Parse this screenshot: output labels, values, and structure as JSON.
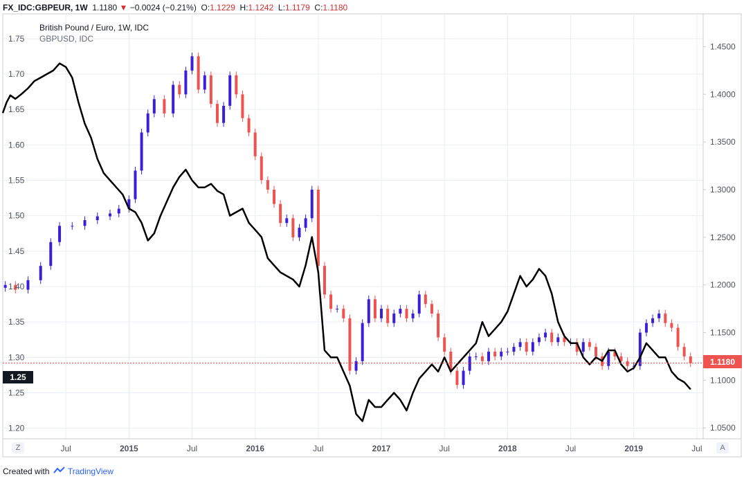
{
  "header": {
    "symbol": "FX_IDC:GBPEUR, 1W",
    "last": "1.1180",
    "change": "−0.0024 (−0.21%)",
    "o_label": "O:",
    "o_value": "1.1229",
    "h_label": "H:",
    "h_value": "1.1242",
    "l_label": "L:",
    "l_value": "1.1179",
    "c_label": "C:",
    "c_value": "1.1180"
  },
  "legend": {
    "main": "British Pound / Euro, 1W, IDC",
    "compare": "GBPUSD, IDC"
  },
  "footer": {
    "created_with": "Created with",
    "brand": "TradingView"
  },
  "buttons": {
    "left": "Z",
    "right": "A"
  },
  "price_label": "1.1180",
  "cursor_label": "1.25",
  "colors": {
    "up": "#3b1fd6",
    "down": "#ef5350",
    "compare": "#000000",
    "grid": "#e9edf5",
    "price_line": "#ef5350",
    "price_label_bg": "#ef5350"
  },
  "chart_data": {
    "type": "line",
    "x_type": "time",
    "x_tick_labels": [
      "Jul",
      "2015",
      "Jul",
      "2016",
      "Jul",
      "2017",
      "Jul",
      "2018",
      "Jul",
      "2019",
      "Jul"
    ],
    "x_tick_dates": [
      2014.5,
      2015.0,
      2015.5,
      2016.0,
      2016.5,
      2017.0,
      2017.5,
      2018.0,
      2018.5,
      2019.0,
      2019.5
    ],
    "xlim": [
      2014.0,
      2019.55
    ],
    "left_axis": {
      "ticks": [
        1.2,
        1.25,
        1.3,
        1.35,
        1.4,
        1.45,
        1.5,
        1.55,
        1.6,
        1.65,
        1.7,
        1.75
      ],
      "ylim": [
        1.185,
        1.785
      ],
      "label": "GBPUSD"
    },
    "right_axis": {
      "ticks": [
        1.05,
        1.1,
        1.15,
        1.2,
        1.25,
        1.3,
        1.35,
        1.4,
        1.45
      ],
      "ylim": [
        1.0385,
        1.4845
      ],
      "label": "GBPEUR"
    },
    "grid": true,
    "series": [
      {
        "name": "British Pound / Euro, 1W, IDC",
        "style": "candlestick",
        "axis": "right",
        "x": [
          2014.02,
          2014.1,
          2014.2,
          2014.3,
          2014.38,
          2014.45,
          2014.55,
          2014.65,
          2014.75,
          2014.85,
          2014.92,
          2015.0,
          2015.05,
          2015.1,
          2015.15,
          2015.2,
          2015.28,
          2015.35,
          2015.4,
          2015.45,
          2015.5,
          2015.55,
          2015.6,
          2015.65,
          2015.7,
          2015.75,
          2015.8,
          2015.85,
          2015.9,
          2015.95,
          2016.0,
          2016.05,
          2016.1,
          2016.15,
          2016.2,
          2016.25,
          2016.3,
          2016.35,
          2016.4,
          2016.45,
          2016.5,
          2016.55,
          2016.6,
          2016.65,
          2016.7,
          2016.75,
          2016.8,
          2016.85,
          2016.9,
          2016.95,
          2017.0,
          2017.05,
          2017.1,
          2017.15,
          2017.2,
          2017.25,
          2017.3,
          2017.35,
          2017.4,
          2017.45,
          2017.5,
          2017.55,
          2017.6,
          2017.65,
          2017.7,
          2017.75,
          2017.8,
          2017.85,
          2017.9,
          2017.95,
          2018.0,
          2018.05,
          2018.1,
          2018.15,
          2018.2,
          2018.25,
          2018.3,
          2018.35,
          2018.4,
          2018.45,
          2018.5,
          2018.55,
          2018.6,
          2018.65,
          2018.7,
          2018.75,
          2018.8,
          2018.85,
          2018.9,
          2018.95,
          2019.0,
          2019.05,
          2019.1,
          2019.15,
          2019.2,
          2019.25,
          2019.3,
          2019.35,
          2019.4,
          2019.45
        ],
        "close": [
          1.2,
          1.195,
          1.205,
          1.22,
          1.245,
          1.262,
          1.262,
          1.268,
          1.272,
          1.275,
          1.28,
          1.29,
          1.32,
          1.36,
          1.38,
          1.395,
          1.38,
          1.41,
          1.4,
          1.425,
          1.44,
          1.405,
          1.42,
          1.39,
          1.37,
          1.388,
          1.42,
          1.4,
          1.375,
          1.36,
          1.335,
          1.31,
          1.3,
          1.285,
          1.265,
          1.27,
          1.25,
          1.26,
          1.27,
          1.3,
          1.22,
          1.19,
          1.175,
          1.175,
          1.165,
          1.11,
          1.12,
          1.16,
          1.185,
          1.165,
          1.175,
          1.16,
          1.17,
          1.175,
          1.165,
          1.17,
          1.19,
          1.18,
          1.17,
          1.145,
          1.13,
          1.11,
          1.095,
          1.11,
          1.125,
          1.125,
          1.12,
          1.13,
          1.125,
          1.13,
          1.13,
          1.135,
          1.14,
          1.13,
          1.14,
          1.145,
          1.15,
          1.14,
          1.145,
          1.14,
          1.14,
          1.13,
          1.14,
          1.135,
          1.125,
          1.115,
          1.13,
          1.125,
          1.12,
          1.115,
          1.115,
          1.15,
          1.16,
          1.165,
          1.17,
          1.16,
          1.155,
          1.135,
          1.125,
          1.118
        ]
      },
      {
        "name": "GBPUSD, IDC",
        "style": "line",
        "axis": "left",
        "x": [
          2014.0,
          2014.03,
          2014.06,
          2014.1,
          2014.15,
          2014.2,
          2014.25,
          2014.3,
          2014.35,
          2014.4,
          2014.45,
          2014.5,
          2014.55,
          2014.6,
          2014.65,
          2014.7,
          2014.75,
          2014.8,
          2014.85,
          2014.9,
          2014.95,
          2015.0,
          2015.05,
          2015.1,
          2015.15,
          2015.2,
          2015.25,
          2015.3,
          2015.35,
          2015.4,
          2015.45,
          2015.5,
          2015.55,
          2015.6,
          2015.65,
          2015.7,
          2015.75,
          2015.8,
          2015.85,
          2015.9,
          2015.95,
          2016.0,
          2016.05,
          2016.1,
          2016.15,
          2016.2,
          2016.25,
          2016.3,
          2016.35,
          2016.4,
          2016.45,
          2016.5,
          2016.55,
          2016.6,
          2016.65,
          2016.7,
          2016.75,
          2016.8,
          2016.85,
          2016.9,
          2016.95,
          2017.0,
          2017.05,
          2017.1,
          2017.15,
          2017.2,
          2017.25,
          2017.3,
          2017.35,
          2017.4,
          2017.45,
          2017.5,
          2017.55,
          2017.6,
          2017.65,
          2017.7,
          2017.75,
          2017.8,
          2017.85,
          2017.9,
          2017.95,
          2018.0,
          2018.05,
          2018.1,
          2018.15,
          2018.2,
          2018.25,
          2018.3,
          2018.35,
          2018.4,
          2018.45,
          2018.5,
          2018.55,
          2018.6,
          2018.65,
          2018.7,
          2018.75,
          2018.8,
          2018.85,
          2018.9,
          2018.95,
          2019.0,
          2019.05,
          2019.1,
          2019.15,
          2019.2,
          2019.25,
          2019.3,
          2019.35,
          2019.4,
          2019.45
        ],
        "values": [
          1.645,
          1.66,
          1.67,
          1.665,
          1.672,
          1.68,
          1.69,
          1.695,
          1.7,
          1.705,
          1.715,
          1.71,
          1.695,
          1.66,
          1.63,
          1.61,
          1.58,
          1.56,
          1.55,
          1.54,
          1.53,
          1.51,
          1.505,
          1.49,
          1.465,
          1.475,
          1.5,
          1.52,
          1.54,
          1.555,
          1.565,
          1.55,
          1.54,
          1.54,
          1.545,
          1.535,
          1.53,
          1.5,
          1.505,
          1.51,
          1.49,
          1.48,
          1.47,
          1.44,
          1.43,
          1.42,
          1.415,
          1.41,
          1.4,
          1.43,
          1.47,
          1.42,
          1.31,
          1.3,
          1.3,
          1.28,
          1.26,
          1.22,
          1.21,
          1.24,
          1.23,
          1.23,
          1.24,
          1.25,
          1.24,
          1.225,
          1.25,
          1.27,
          1.28,
          1.29,
          1.28,
          1.3,
          1.28,
          1.29,
          1.3,
          1.31,
          1.32,
          1.35,
          1.33,
          1.34,
          1.35,
          1.365,
          1.39,
          1.415,
          1.4,
          1.41,
          1.425,
          1.415,
          1.39,
          1.35,
          1.33,
          1.32,
          1.32,
          1.3,
          1.29,
          1.3,
          1.295,
          1.31,
          1.31,
          1.29,
          1.28,
          1.285,
          1.3,
          1.32,
          1.31,
          1.3,
          1.3,
          1.28,
          1.27,
          1.265,
          1.255
        ]
      }
    ]
  }
}
